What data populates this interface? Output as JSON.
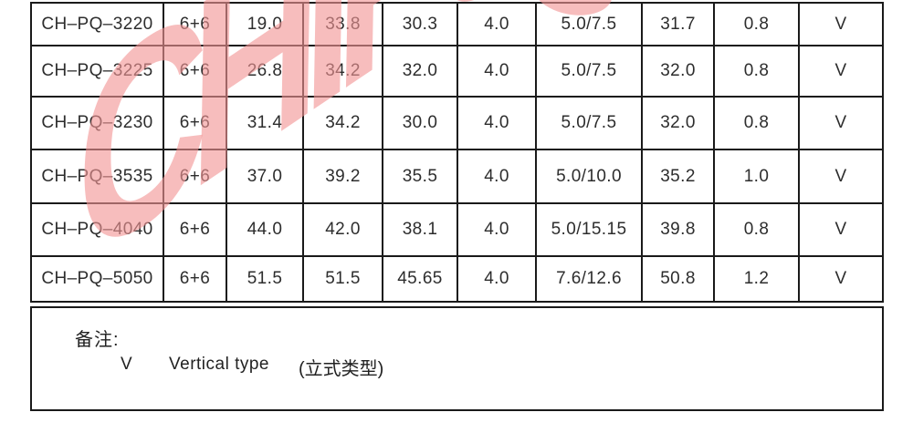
{
  "watermark": {
    "text": "CHIPS",
    "color": "#f29494"
  },
  "table": {
    "border_color": "#1a1a1a",
    "rows": [
      [
        "CH–PQ–3220",
        "6+6",
        "19.0",
        "33.8",
        "30.3",
        "4.0",
        "5.0/7.5",
        "31.7",
        "0.8",
        "V"
      ],
      [
        "CH–PQ–3225",
        "6+6",
        "26.8",
        "34.2",
        "32.0",
        "4.0",
        "5.0/7.5",
        "32.0",
        "0.8",
        "V"
      ],
      [
        "CH–PQ–3230",
        "6+6",
        "31.4",
        "34.2",
        "30.0",
        "4.0",
        "5.0/7.5",
        "32.0",
        "0.8",
        "V"
      ],
      [
        "CH–PQ–3535",
        "6+6",
        "37.0",
        "39.2",
        "35.5",
        "4.0",
        "5.0/10.0",
        "35.2",
        "1.0",
        "V"
      ],
      [
        "CH–PQ–4040",
        "6+6",
        "44.0",
        "42.0",
        "38.1",
        "4.0",
        "5.0/15.15",
        "39.8",
        "0.8",
        "V"
      ],
      [
        "CH–PQ–5050",
        "6+6",
        "51.5",
        "51.5",
        "45.65",
        "4.0",
        "7.6/12.6",
        "50.8",
        "1.2",
        "V"
      ]
    ]
  },
  "notes": {
    "label": "备注:",
    "symbol": "V",
    "text_en": "Vertical type",
    "text_zh": "(立式类型)"
  }
}
